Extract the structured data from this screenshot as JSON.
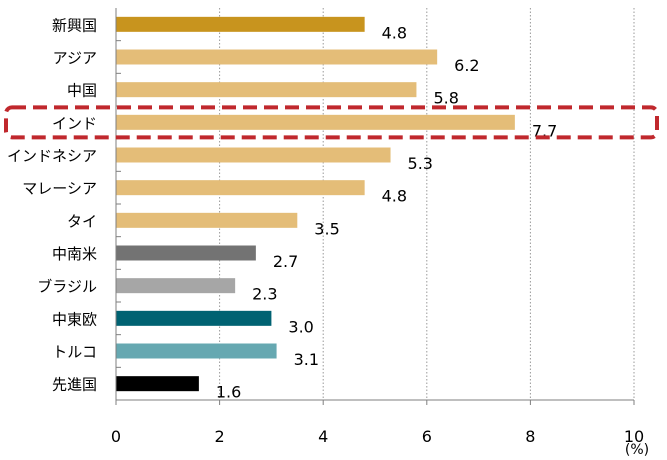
{
  "chart_data": {
    "type": "bar",
    "orientation": "horizontal",
    "categories": [
      "新興国",
      "アジア",
      "中国",
      "インド",
      "インドネシア",
      "マレーシア",
      "タイ",
      "中南米",
      "ブラジル",
      "中東欧",
      "トルコ",
      "先進国"
    ],
    "values": [
      4.8,
      6.2,
      5.8,
      7.7,
      5.3,
      4.8,
      3.5,
      2.7,
      2.3,
      3.0,
      3.1,
      1.6
    ],
    "value_labels": [
      "4.8",
      "6.2",
      "5.8",
      "7.7",
      "5.3",
      "4.8",
      "3.5",
      "2.7",
      "2.3",
      "3.0",
      "3.1",
      "1.6"
    ],
    "colors": [
      "#c8941e",
      "#e4bd78",
      "#e4bd78",
      "#e4bd78",
      "#e4bd78",
      "#e4bd78",
      "#e4bd78",
      "#737373",
      "#a6a6a6",
      "#006272",
      "#66a8b1",
      "#000000"
    ],
    "xlim": [
      0,
      10
    ],
    "xticks": [
      "0",
      "2",
      "4",
      "6",
      "8",
      "10"
    ],
    "xunit": "(%)",
    "grid": "vertical-dotted",
    "highlight": {
      "category": "インド",
      "color": "#c0282d",
      "style": "dashed-rounded-box"
    }
  }
}
